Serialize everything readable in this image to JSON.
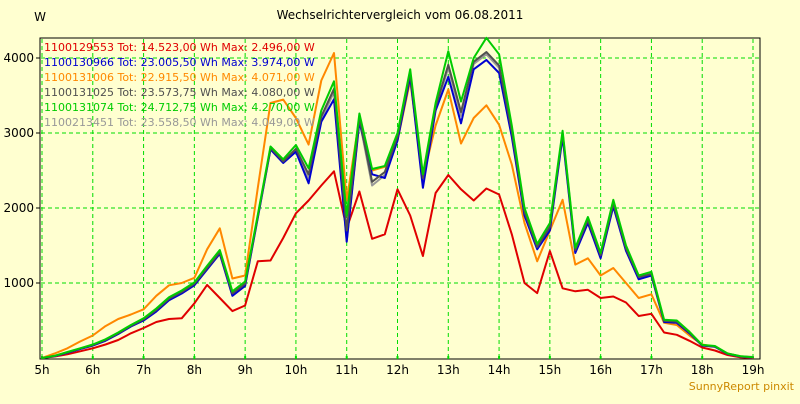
{
  "title": "Wechselrichtervergleich vom 06.08.2011",
  "y_unit": "W",
  "footer": "SunnyReport pinxit",
  "colors": {
    "background": "#FFFFD0",
    "grid": "#00DD00",
    "axis": "#000000",
    "footer_text": "#CC8800"
  },
  "chart_data": {
    "type": "line",
    "title": "Wechselrichtervergleich vom 06.08.2011",
    "xlabel": "",
    "ylabel": "W",
    "xlim": [
      5,
      19
    ],
    "ylim": [
      0,
      4267
    ],
    "grid": true,
    "legend_position": "top-left-inside",
    "x_tick_values": [
      5,
      6,
      7,
      8,
      9,
      10,
      11,
      12,
      13,
      14,
      15,
      16,
      17,
      18,
      19
    ],
    "x_ticks": [
      "5h",
      "6h",
      "7h",
      "8h",
      "9h",
      "10h",
      "11h",
      "12h",
      "13h",
      "14h",
      "15h",
      "16h",
      "17h",
      "18h",
      "19h"
    ],
    "y_ticks": [
      1000,
      2000,
      3000,
      4000
    ],
    "draw_order": [
      0,
      2,
      5,
      1,
      3,
      4
    ],
    "x": [
      5,
      5.25,
      5.5,
      5.75,
      6,
      6.25,
      6.5,
      6.75,
      7,
      7.25,
      7.5,
      7.75,
      8,
      8.25,
      8.5,
      8.75,
      9,
      9.25,
      9.5,
      9.75,
      10,
      10.25,
      10.5,
      10.75,
      11,
      11.25,
      11.5,
      11.75,
      12,
      12.25,
      12.5,
      12.75,
      13,
      13.25,
      13.5,
      13.75,
      14,
      14.25,
      14.5,
      14.75,
      15,
      15.25,
      15.5,
      15.75,
      16,
      16.25,
      16.5,
      16.75,
      17,
      17.25,
      17.5,
      17.75,
      18,
      18.25,
      18.5,
      18.75,
      19
    ],
    "series": [
      {
        "name": "1100129553",
        "legend": "1100129553 Tot: 14.523,00 Wh Max: 2.496,00 W",
        "total_wh": "14.523,00",
        "max_w": "2.496,00",
        "color": "#E00000",
        "values": [
          0,
          20,
          50,
          90,
          130,
          180,
          240,
          330,
          400,
          480,
          520,
          530,
          730,
          975,
          800,
          625,
          700,
          1290,
          1300,
          1600,
          1930,
          2100,
          2300,
          2490,
          1730,
          2220,
          1590,
          1650,
          2250,
          1900,
          1360,
          2200,
          2440,
          2250,
          2100,
          2260,
          2180,
          1650,
          1000,
          865,
          1425,
          930,
          890,
          910,
          800,
          820,
          740,
          560,
          590,
          340,
          310,
          230,
          140,
          100,
          40,
          10,
          0
        ]
      },
      {
        "name": "1100130966",
        "legend": "1100130966 Tot: 23.005,50 Wh Max: 3.974,00 W",
        "total_wh": "23.005,50",
        "max_w": "3.974,00",
        "color": "#0000D0",
        "values": [
          0,
          25,
          70,
          120,
          165,
          230,
          320,
          420,
          500,
          620,
          770,
          860,
          970,
          1180,
          1390,
          830,
          960,
          1870,
          2780,
          2600,
          2750,
          2330,
          3150,
          3450,
          1550,
          3150,
          2450,
          2400,
          2900,
          3750,
          2270,
          3300,
          3750,
          3130,
          3850,
          3974,
          3800,
          2950,
          1900,
          1450,
          1700,
          2950,
          1400,
          1800,
          1330,
          2020,
          1430,
          1050,
          1100,
          480,
          470,
          330,
          165,
          150,
          55,
          20,
          5
        ]
      },
      {
        "name": "1100131006",
        "legend": "1100131006 Tot: 22.915,50 Wh Max: 4.071,00 W",
        "total_wh": "22.915,50",
        "max_w": "4.071,00",
        "color": "#FF8800",
        "values": [
          0,
          60,
          130,
          220,
          300,
          425,
          520,
          580,
          650,
          830,
          970,
          1000,
          1070,
          1450,
          1730,
          1060,
          1100,
          2270,
          3400,
          3445,
          3200,
          2845,
          3700,
          4067,
          2100,
          3200,
          2500,
          2550,
          2900,
          3700,
          2400,
          3100,
          3580,
          2860,
          3200,
          3370,
          3110,
          2580,
          1800,
          1290,
          1700,
          2110,
          1245,
          1330,
          1100,
          1200,
          1000,
          800,
          850,
          470,
          440,
          300,
          180,
          150,
          60,
          20,
          5
        ]
      },
      {
        "name": "1100131025",
        "legend": "1100131025 Tot: 23.573,75 Wh Max: 4.080,00 W",
        "total_wh": "23.573,75",
        "max_w": "4.080,00",
        "color": "#505050",
        "values": [
          0,
          28,
          75,
          125,
          172,
          240,
          330,
          430,
          515,
          640,
          790,
          880,
          990,
          1200,
          1410,
          860,
          990,
          1890,
          2800,
          2620,
          2790,
          2450,
          3220,
          3590,
          1700,
          3200,
          2350,
          2480,
          2950,
          3800,
          2400,
          3350,
          3910,
          3280,
          3950,
          4080,
          3900,
          3020,
          1950,
          1480,
          1750,
          3000,
          1440,
          1840,
          1370,
          2060,
          1460,
          1080,
          1120,
          495,
          485,
          340,
          170,
          155,
          58,
          22,
          8
        ]
      },
      {
        "name": "1100131074",
        "legend": "1100131074 Tot: 24.712,75 Wh Max: 4.270,00 W",
        "total_wh": "24.712,75",
        "max_w": "4.270,00",
        "color": "#00CC00",
        "values": [
          0,
          30,
          80,
          130,
          180,
          250,
          340,
          440,
          530,
          660,
          810,
          900,
          1010,
          1230,
          1440,
          890,
          1020,
          1910,
          2820,
          2650,
          2840,
          2530,
          3300,
          3690,
          1900,
          3260,
          2520,
          2560,
          3000,
          3850,
          2450,
          3400,
          4090,
          3420,
          4000,
          4270,
          4050,
          3100,
          2000,
          1520,
          1800,
          3030,
          1470,
          1880,
          1400,
          2110,
          1500,
          1100,
          1150,
          510,
          500,
          350,
          175,
          160,
          60,
          25,
          10
        ]
      },
      {
        "name": "1100213451",
        "legend": "1100213451 Tot: 23.558,50 Wh Max: 4.049,00 W",
        "total_wh": "23.558,50",
        "max_w": "4.049,00",
        "color": "#989898",
        "values": [
          0,
          26,
          72,
          122,
          168,
          235,
          325,
          425,
          505,
          630,
          780,
          870,
          980,
          1190,
          1400,
          840,
          970,
          1880,
          2790,
          2610,
          2770,
          2400,
          3180,
          3550,
          1560,
          3170,
          2300,
          2440,
          2920,
          3770,
          2330,
          3320,
          3870,
          3230,
          3920,
          4049,
          3870,
          2980,
          1920,
          1460,
          1720,
          2970,
          1420,
          1820,
          1350,
          2040,
          1440,
          1060,
          1110,
          490,
          475,
          335,
          168,
          152,
          56,
          21,
          15
        ]
      }
    ]
  }
}
